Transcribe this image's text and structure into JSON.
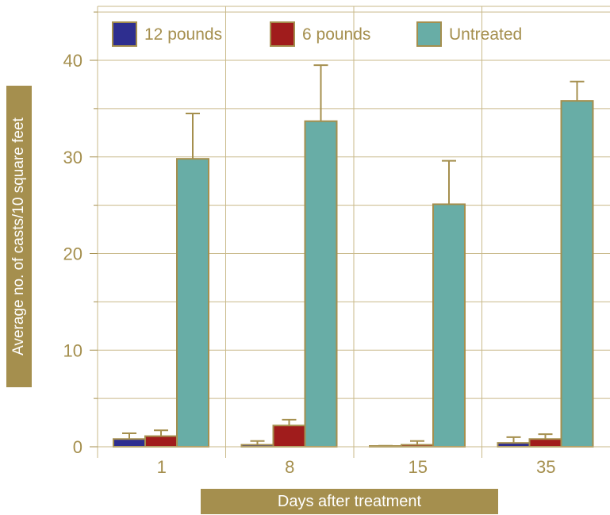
{
  "chart_data": {
    "type": "bar",
    "xlabel": "Days after treatment",
    "ylabel": "Average no. of casts/10 square feet",
    "ylim": [
      0,
      45
    ],
    "yticks": [
      0,
      10,
      20,
      30,
      40
    ],
    "categories": [
      "1",
      "8",
      "15",
      "35"
    ],
    "series": [
      {
        "name": "12 pounds",
        "color": "#2E2E8F",
        "values": [
          0.8,
          0.2,
          0.0,
          0.4
        ],
        "errors": [
          0.6,
          0.4,
          0.1,
          0.6
        ]
      },
      {
        "name": "6 pounds",
        "color": "#A01C1C",
        "values": [
          1.1,
          2.2,
          0.2,
          0.8
        ],
        "errors": [
          0.6,
          0.6,
          0.4,
          0.5
        ]
      },
      {
        "name": "Untreated",
        "color": "#68ADA6",
        "values": [
          29.8,
          33.7,
          25.1,
          35.8
        ],
        "errors": [
          4.7,
          5.8,
          4.5,
          2.0
        ]
      }
    ],
    "legend_position": "top",
    "grid": true,
    "outline_color": "#A58F4E"
  }
}
